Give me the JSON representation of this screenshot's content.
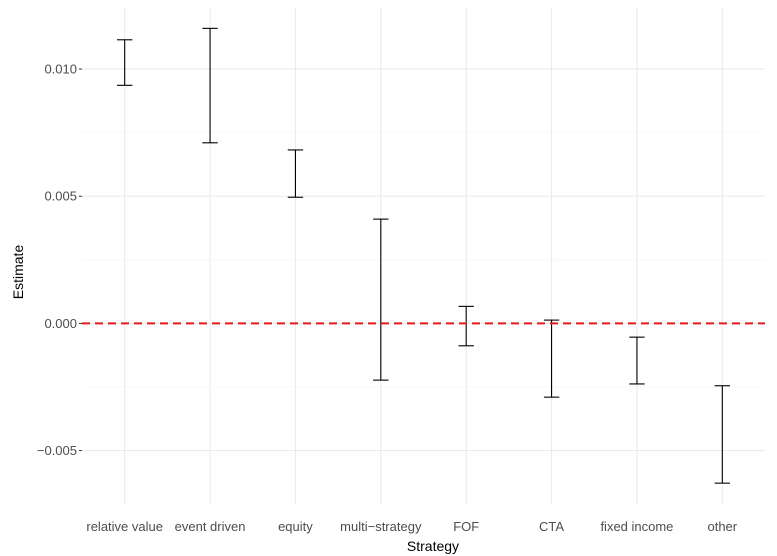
{
  "chart_data": {
    "type": "errorbar",
    "title": "",
    "xlabel": "Strategy",
    "ylabel": "Estimate",
    "ylim": [
      -0.0071,
      0.0124
    ],
    "yticks": [
      -0.005,
      0.0,
      0.005,
      0.01
    ],
    "ytick_labels": [
      "−0.005",
      "0.000",
      "0.005",
      "0.010"
    ],
    "grid": true,
    "legend": "none",
    "categories": [
      "relative value",
      "event driven",
      "equity",
      "multi−strategy",
      "FOF",
      "CTA",
      "fixed income",
      "other"
    ],
    "series": [
      {
        "lower": [
          0.00936,
          0.0071,
          0.00496,
          -0.00223,
          -0.00088,
          -0.0029,
          -0.00238,
          -0.00628
        ],
        "upper": [
          0.01115,
          0.0116,
          0.00682,
          0.0041,
          0.00067,
          0.00013,
          -0.00054,
          -0.00245
        ]
      }
    ],
    "reference_line": {
      "y": 0.0,
      "style": "dashed",
      "color": "#e41a1c"
    }
  }
}
